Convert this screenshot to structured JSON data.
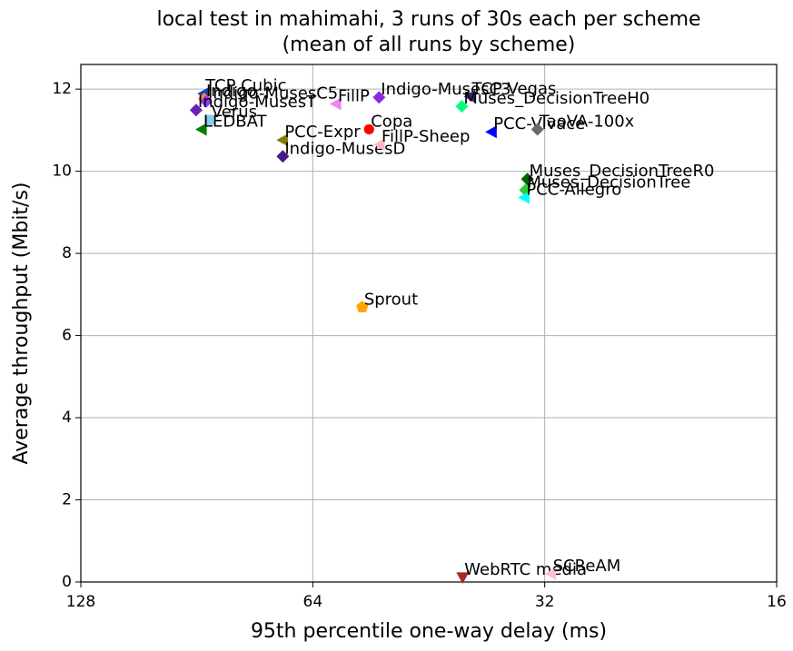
{
  "chart_data": {
    "type": "scatter",
    "title": "local test in mahimahi, 3 runs of 30s each per scheme",
    "subtitle": "(mean of all runs by scheme)",
    "xlabel": "95th percentile one-way delay (ms)",
    "ylabel": "Average throughput (Mbit/s)",
    "xscale": "log",
    "xlim": [
      128,
      16
    ],
    "xticks": [
      128,
      64,
      32,
      16
    ],
    "ylim": [
      0,
      12.6
    ],
    "yticks": [
      0,
      2,
      4,
      6,
      8,
      10,
      12
    ],
    "grid": true,
    "series": [
      {
        "name": "TCP Cubic",
        "color": "#1f3fbf",
        "marker": "left",
        "x": [
          88.7
        ],
        "values": [
          11.89
        ]
      },
      {
        "name": "Indigo",
        "color": "#ff8c1a",
        "marker": "diamond",
        "x": [
          88.5
        ],
        "values": [
          11.76
        ]
      },
      {
        "name": "Indigo-MusesC5",
        "color": "#9b30ff",
        "marker": "diamond",
        "x": [
          88.0
        ],
        "values": [
          11.7
        ]
      },
      {
        "name": "Indigo-MusesT",
        "color": "#6a1fb5",
        "marker": "diamond",
        "x": [
          90.7
        ],
        "values": [
          11.49
        ]
      },
      {
        "name": "Verus",
        "color": "#87ceeb",
        "marker": "square",
        "x": [
          87.1
        ],
        "values": [
          11.25
        ]
      },
      {
        "name": "LEDBAT",
        "color": "#007f00",
        "marker": "left",
        "x": [
          89.2
        ],
        "values": [
          11.02
        ]
      },
      {
        "name": "FillP",
        "color": "#ee82ee",
        "marker": "left",
        "x": [
          59.7
        ],
        "values": [
          11.64
        ]
      },
      {
        "name": "PCC-Expr",
        "color": "#808000",
        "marker": "left",
        "x": [
          70.0
        ],
        "values": [
          10.76
        ]
      },
      {
        "name": "Indigo-MusesD",
        "color": "#4b1a8a",
        "marker": "diamond",
        "x": [
          70.0
        ],
        "values": [
          10.36
        ]
      },
      {
        "name": "Copa",
        "color": "#ff0000",
        "marker": "circle",
        "x": [
          54.1
        ],
        "values": [
          11.02
        ]
      },
      {
        "name": "FillP-Sheep",
        "color": "#ffb6c1",
        "marker": "left",
        "x": [
          52.4
        ],
        "values": [
          10.65
        ]
      },
      {
        "name": "Indigo-MusesC3",
        "color": "#8a2be2",
        "marker": "diamond",
        "x": [
          52.5
        ],
        "values": [
          11.8
        ]
      },
      {
        "name": "Sprout",
        "color": "#ffa500",
        "marker": "pentagon",
        "x": [
          55.2
        ],
        "values": [
          6.69
        ]
      },
      {
        "name": "TCP Vegas",
        "color": "#3f1f6f",
        "marker": "left",
        "x": [
          40.0
        ],
        "values": [
          11.82
        ]
      },
      {
        "name": "Muses_DecisionTreeH0",
        "color": "#00ff7f",
        "marker": "diamond",
        "x": [
          41.0
        ],
        "values": [
          11.58
        ]
      },
      {
        "name": "PCC-Vivace",
        "color": "#0000ff",
        "marker": "left",
        "x": [
          37.5
        ],
        "values": [
          10.96
        ]
      },
      {
        "name": "TaoVA-100x",
        "color": "#696969",
        "marker": "diamond",
        "x": [
          32.7
        ],
        "values": [
          11.02
        ]
      },
      {
        "name": "Muses_DecisionTreeR0",
        "color": "#006400",
        "marker": "diamond",
        "x": [
          33.7
        ],
        "values": [
          9.81
        ]
      },
      {
        "name": "Muses_DecisionTree",
        "color": "#32cd32",
        "marker": "diamond",
        "x": [
          33.9
        ],
        "values": [
          9.54
        ]
      },
      {
        "name": "PCC-Allegro",
        "color": "#00ffff",
        "marker": "left",
        "x": [
          34.0
        ],
        "values": [
          9.36
        ]
      },
      {
        "name": "WebRTC media",
        "color": "#a52a2a",
        "marker": "down",
        "x": [
          40.9
        ],
        "values": [
          0.11
        ]
      },
      {
        "name": "SCReAM",
        "color": "#ffc0cb",
        "marker": "left",
        "x": [
          31.4
        ],
        "values": [
          0.2
        ]
      }
    ]
  }
}
